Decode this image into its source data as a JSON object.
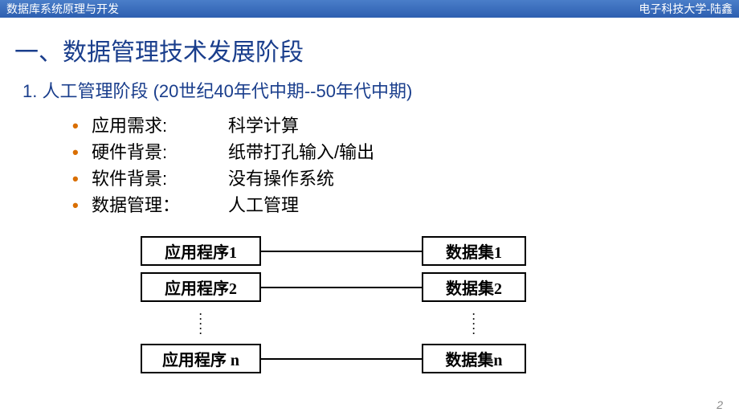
{
  "header": {
    "left": "数据库系统原理与开发",
    "right": "电子科技大学-陆鑫"
  },
  "colors": {
    "title": "#1a3e8c",
    "subtitle": "#1a3e8c",
    "bullet": "#d96e00",
    "header_text": "#ffffff"
  },
  "title": "一、数据管理技术发展阶段",
  "subtitle": "1. 人工管理阶段 (20世纪40年代中期--50年代中期)",
  "bullets": [
    {
      "label": "应用需求:",
      "value": "科学计算"
    },
    {
      "label": "硬件背景:",
      "value": "纸带打孔输入/输出"
    },
    {
      "label": "软件背景:",
      "value": "没有操作系统"
    },
    {
      "label": "数据管理：",
      "value": "人工管理"
    }
  ],
  "diagram": {
    "rows": [
      {
        "left": "应用程序1",
        "right": "数据集1"
      },
      {
        "left": "应用程序2",
        "right": "数据集2"
      }
    ],
    "lastRow": {
      "left": "应用程序 n",
      "right": "数据集n"
    }
  },
  "pageNumber": "2"
}
